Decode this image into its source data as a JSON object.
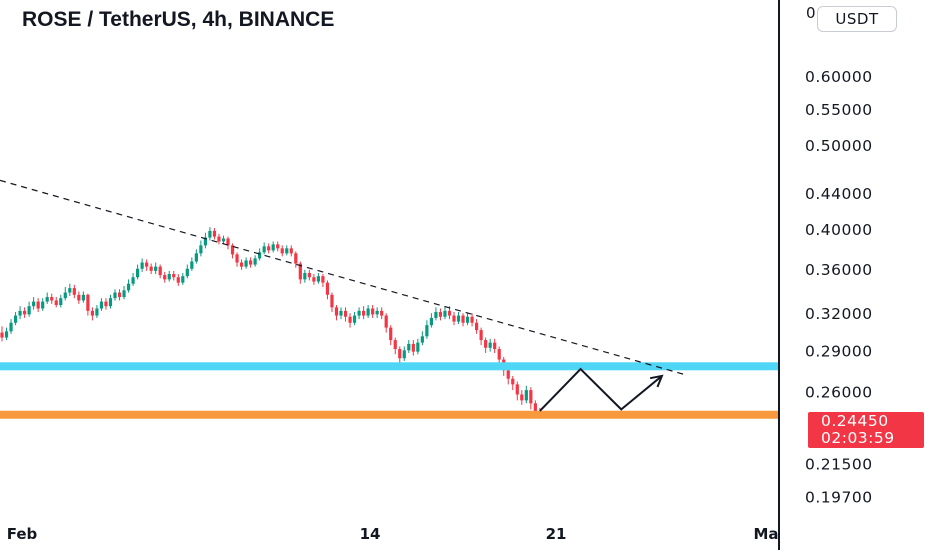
{
  "header": {
    "title": "ROSE / TetherUS, 4h, BINANCE",
    "currency": "USDT",
    "cut_label": "0"
  },
  "price_tag": {
    "price": "0.24450",
    "countdown": "02:03:59",
    "color": "#f23645"
  },
  "colors": {
    "up": "#089981",
    "down": "#f23645",
    "support_cyan": "#4dd6f5",
    "support_orange": "#f7993c",
    "trendline": "#131722",
    "projection": "#131722"
  },
  "chart_data": {
    "type": "candlestick",
    "title": "ROSE / TetherUS, 4h, BINANCE",
    "scale": "log",
    "y_ticks": [
      "0.60000",
      "0.55000",
      "0.50000",
      "0.44000",
      "0.40000",
      "0.36000",
      "0.32000",
      "0.29000",
      "0.26000",
      "0.21500",
      "0.19700"
    ],
    "y_tick_values": [
      0.6,
      0.55,
      0.5,
      0.44,
      0.4,
      0.36,
      0.32,
      0.29,
      0.26,
      0.215,
      0.197
    ],
    "ylim": [
      0.185,
      0.66
    ],
    "x_ticks": [
      "Feb",
      "14",
      "21",
      "Ma"
    ],
    "last_price": 0.2445,
    "candles": [
      [
        0.304,
        0.3,
        0.309,
        0.297
      ],
      [
        0.3,
        0.305,
        0.308,
        0.298
      ],
      [
        0.305,
        0.312,
        0.315,
        0.303
      ],
      [
        0.312,
        0.318,
        0.321,
        0.31
      ],
      [
        0.318,
        0.322,
        0.326,
        0.315
      ],
      [
        0.322,
        0.319,
        0.325,
        0.316
      ],
      [
        0.319,
        0.326,
        0.33,
        0.317
      ],
      [
        0.326,
        0.33,
        0.334,
        0.323
      ],
      [
        0.33,
        0.324,
        0.333,
        0.321
      ],
      [
        0.324,
        0.33,
        0.333,
        0.322
      ],
      [
        0.33,
        0.334,
        0.338,
        0.328
      ],
      [
        0.334,
        0.331,
        0.337,
        0.328
      ],
      [
        0.331,
        0.327,
        0.334,
        0.325
      ],
      [
        0.327,
        0.333,
        0.336,
        0.325
      ],
      [
        0.333,
        0.338,
        0.343,
        0.331
      ],
      [
        0.338,
        0.342,
        0.346,
        0.335
      ],
      [
        0.342,
        0.336,
        0.345,
        0.333
      ],
      [
        0.336,
        0.331,
        0.339,
        0.328
      ],
      [
        0.331,
        0.336,
        0.339,
        0.329
      ],
      [
        0.336,
        0.322,
        0.337,
        0.318
      ],
      [
        0.322,
        0.318,
        0.325,
        0.314
      ],
      [
        0.318,
        0.324,
        0.327,
        0.316
      ],
      [
        0.324,
        0.33,
        0.333,
        0.322
      ],
      [
        0.33,
        0.326,
        0.333,
        0.323
      ],
      [
        0.326,
        0.333,
        0.336,
        0.324
      ],
      [
        0.333,
        0.338,
        0.341,
        0.331
      ],
      [
        0.338,
        0.334,
        0.341,
        0.331
      ],
      [
        0.334,
        0.34,
        0.344,
        0.332
      ],
      [
        0.34,
        0.346,
        0.35,
        0.338
      ],
      [
        0.346,
        0.352,
        0.356,
        0.344
      ],
      [
        0.352,
        0.36,
        0.364,
        0.35
      ],
      [
        0.36,
        0.366,
        0.37,
        0.357
      ],
      [
        0.366,
        0.362,
        0.369,
        0.358
      ],
      [
        0.362,
        0.358,
        0.365,
        0.355
      ],
      [
        0.358,
        0.362,
        0.366,
        0.355
      ],
      [
        0.362,
        0.354,
        0.364,
        0.351
      ],
      [
        0.354,
        0.35,
        0.357,
        0.347
      ],
      [
        0.35,
        0.355,
        0.358,
        0.348
      ],
      [
        0.355,
        0.352,
        0.358,
        0.349
      ],
      [
        0.352,
        0.347,
        0.355,
        0.344
      ],
      [
        0.347,
        0.353,
        0.356,
        0.345
      ],
      [
        0.353,
        0.36,
        0.364,
        0.351
      ],
      [
        0.36,
        0.367,
        0.371,
        0.358
      ],
      [
        0.367,
        0.375,
        0.379,
        0.365
      ],
      [
        0.375,
        0.383,
        0.388,
        0.372
      ],
      [
        0.383,
        0.391,
        0.396,
        0.38
      ],
      [
        0.391,
        0.398,
        0.402,
        0.388
      ],
      [
        0.398,
        0.392,
        0.401,
        0.389
      ],
      [
        0.392,
        0.387,
        0.395,
        0.384
      ],
      [
        0.387,
        0.39,
        0.393,
        0.384
      ],
      [
        0.39,
        0.383,
        0.392,
        0.379
      ],
      [
        0.383,
        0.374,
        0.385,
        0.37
      ],
      [
        0.374,
        0.366,
        0.376,
        0.362
      ],
      [
        0.366,
        0.362,
        0.369,
        0.359
      ],
      [
        0.362,
        0.368,
        0.371,
        0.36
      ],
      [
        0.368,
        0.364,
        0.371,
        0.361
      ],
      [
        0.364,
        0.37,
        0.373,
        0.362
      ],
      [
        0.37,
        0.376,
        0.38,
        0.368
      ],
      [
        0.376,
        0.382,
        0.386,
        0.374
      ],
      [
        0.382,
        0.378,
        0.385,
        0.375
      ],
      [
        0.378,
        0.384,
        0.387,
        0.376
      ],
      [
        0.384,
        0.38,
        0.387,
        0.377
      ],
      [
        0.38,
        0.375,
        0.383,
        0.372
      ],
      [
        0.375,
        0.38,
        0.383,
        0.373
      ],
      [
        0.38,
        0.375,
        0.383,
        0.372
      ],
      [
        0.375,
        0.365,
        0.377,
        0.361
      ],
      [
        0.365,
        0.35,
        0.367,
        0.346
      ],
      [
        0.35,
        0.356,
        0.359,
        0.347
      ],
      [
        0.356,
        0.352,
        0.359,
        0.349
      ],
      [
        0.352,
        0.348,
        0.355,
        0.345
      ],
      [
        0.348,
        0.353,
        0.356,
        0.346
      ],
      [
        0.353,
        0.347,
        0.355,
        0.343
      ],
      [
        0.347,
        0.336,
        0.349,
        0.332
      ],
      [
        0.336,
        0.325,
        0.338,
        0.321
      ],
      [
        0.325,
        0.318,
        0.327,
        0.314
      ],
      [
        0.318,
        0.322,
        0.325,
        0.315
      ],
      [
        0.322,
        0.317,
        0.325,
        0.313
      ],
      [
        0.317,
        0.312,
        0.32,
        0.308
      ],
      [
        0.312,
        0.318,
        0.321,
        0.31
      ],
      [
        0.318,
        0.322,
        0.325,
        0.315
      ],
      [
        0.322,
        0.318,
        0.326,
        0.315
      ],
      [
        0.318,
        0.324,
        0.327,
        0.316
      ],
      [
        0.324,
        0.319,
        0.327,
        0.316
      ],
      [
        0.319,
        0.322,
        0.325,
        0.316
      ],
      [
        0.322,
        0.318,
        0.325,
        0.315
      ],
      [
        0.318,
        0.308,
        0.32,
        0.304
      ],
      [
        0.308,
        0.298,
        0.31,
        0.294
      ],
      [
        0.298,
        0.291,
        0.3,
        0.287
      ],
      [
        0.291,
        0.284,
        0.293,
        0.278
      ],
      [
        0.284,
        0.29,
        0.293,
        0.282
      ],
      [
        0.29,
        0.295,
        0.298,
        0.288
      ],
      [
        0.295,
        0.289,
        0.298,
        0.286
      ],
      [
        0.289,
        0.296,
        0.299,
        0.287
      ],
      [
        0.296,
        0.301,
        0.305,
        0.294
      ],
      [
        0.301,
        0.31,
        0.314,
        0.299
      ],
      [
        0.31,
        0.316,
        0.32,
        0.308
      ],
      [
        0.316,
        0.321,
        0.325,
        0.314
      ],
      [
        0.321,
        0.317,
        0.324,
        0.314
      ],
      [
        0.317,
        0.322,
        0.326,
        0.315
      ],
      [
        0.322,
        0.318,
        0.326,
        0.315
      ],
      [
        0.318,
        0.313,
        0.321,
        0.31
      ],
      [
        0.313,
        0.318,
        0.321,
        0.311
      ],
      [
        0.318,
        0.312,
        0.32,
        0.309
      ],
      [
        0.312,
        0.317,
        0.32,
        0.31
      ],
      [
        0.317,
        0.312,
        0.32,
        0.309
      ],
      [
        0.312,
        0.306,
        0.315,
        0.303
      ],
      [
        0.306,
        0.298,
        0.308,
        0.294
      ],
      [
        0.298,
        0.292,
        0.3,
        0.288
      ],
      [
        0.292,
        0.296,
        0.299,
        0.289
      ],
      [
        0.296,
        0.291,
        0.299,
        0.288
      ],
      [
        0.291,
        0.283,
        0.293,
        0.279
      ],
      [
        0.283,
        0.275,
        0.285,
        0.271
      ],
      [
        0.275,
        0.269,
        0.277,
        0.265
      ],
      [
        0.269,
        0.265,
        0.271,
        0.261
      ],
      [
        0.265,
        0.258,
        0.267,
        0.254
      ],
      [
        0.258,
        0.254,
        0.261,
        0.251
      ],
      [
        0.254,
        0.261,
        0.264,
        0.252
      ],
      [
        0.261,
        0.252,
        0.263,
        0.248
      ],
      [
        0.252,
        0.246,
        0.254,
        0.243
      ],
      [
        0.246,
        0.2445,
        0.249,
        0.242
      ]
    ],
    "trendline": {
      "from": [
        0,
        0.455
      ],
      "to": [
        151,
        0.272
      ]
    },
    "horizontal_levels": [
      {
        "value": 0.278,
        "color": "#4dd6f5"
      },
      {
        "value": 0.2445,
        "color": "#f7993c"
      }
    ],
    "projection_path": [
      [
        119,
        0.247
      ],
      [
        128,
        0.276
      ],
      [
        137,
        0.248
      ],
      [
        146,
        0.271
      ]
    ]
  }
}
